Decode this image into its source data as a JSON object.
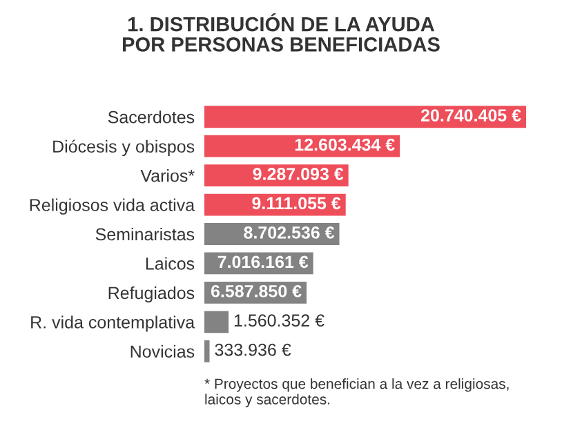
{
  "chart_data": {
    "type": "bar",
    "orientation": "horizontal",
    "title": "1. DISTRIBUCIÓN DE LA AYUDA\nPOR PERSONAS BENEFICIADAS",
    "categories": [
      "Sacerdotes",
      "Diócesis y obispos",
      "Varios*",
      "Religiosos vida activa",
      "Seminaristas",
      "Laicos",
      "Refugiados",
      "R. vida contemplativa",
      "Novicias"
    ],
    "values": [
      20740405,
      12603434,
      9287093,
      9111055,
      8702536,
      7016161,
      6587850,
      1560352,
      333936
    ],
    "colors": [
      "#ee4e5a",
      "#ee4e5a",
      "#ee4e5a",
      "#ee4e5a",
      "#838383",
      "#838383",
      "#838383",
      "#838383",
      "#838383"
    ],
    "value_labels": [
      "20.740.405 €",
      "12.603.434 €",
      "9.287.093 €",
      "9.111.055 €",
      "8.702.536 €",
      "7.016.161 €",
      "6.587.850 €",
      "1.560.352 €",
      "333.936 €"
    ],
    "annotations": [
      "* Proyectos que benefician a la vez a religiosas,\nlaicos y sacerdotes."
    ]
  }
}
